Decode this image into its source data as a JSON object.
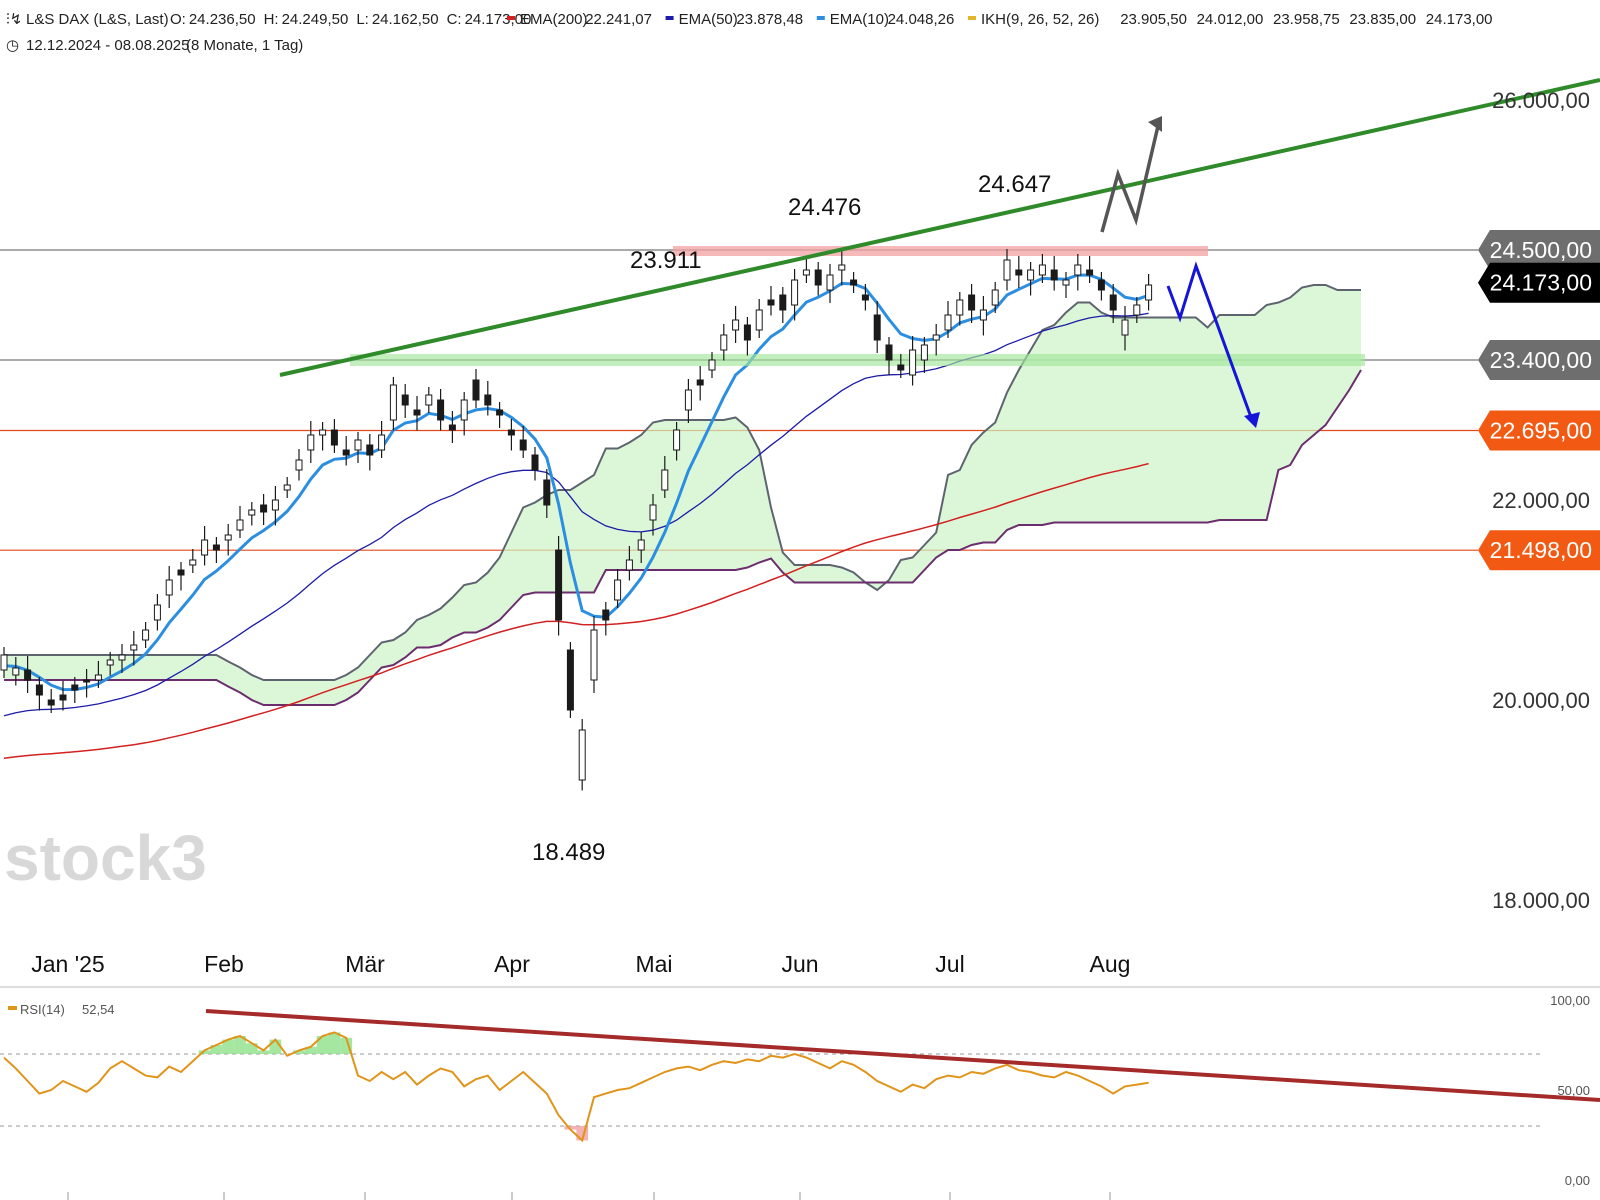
{
  "header": {
    "instrument": "L&S DAX (L&S, Last)",
    "ohlc": [
      {
        "label": "O:",
        "value": "24.236,50"
      },
      {
        "label": "H:",
        "value": "24.249,50"
      },
      {
        "label": "L:",
        "value": "24.162,50"
      },
      {
        "label": "C:",
        "value": "24.173,00"
      }
    ],
    "indicators": [
      {
        "name": "EMA(200)",
        "value": "22.241,07",
        "color": "#d32020"
      },
      {
        "name": "EMA(50)",
        "value": "23.878,48",
        "color": "#1c1ca8"
      },
      {
        "name": "EMA(10)",
        "value": "24.048,26",
        "color": "#2b8ee0"
      },
      {
        "name": "IKH(9, 26, 52, 26)",
        "color": "#e0b62a",
        "values": [
          {
            "value": "23.905,50",
            "color": "#e0b62a"
          },
          {
            "value": "24.012,00",
            "color": "#2b8ee0"
          },
          {
            "value": "23.958,75",
            "color": "#4a5566"
          },
          {
            "value": "23.835,00",
            "color": "#6b2d6e"
          },
          {
            "value": "24.173,00",
            "color": "#5a8a3a"
          }
        ]
      }
    ],
    "range": "12.12.2024 - 08.08.2025",
    "range_detail": "(8 Monate, 1 Tag)"
  },
  "watermark": "stock3",
  "chart_data": [
    {
      "type": "candlestick",
      "title": "L&S DAX (L&S, Last)",
      "ylim": [
        17500,
        26400
      ],
      "y_ticks": [
        {
          "value": 18000,
          "label": "18.000,00"
        },
        {
          "value": 20000,
          "label": "20.000,00"
        },
        {
          "value": 22000,
          "label": "22.000,00"
        },
        {
          "value": 26000,
          "label": "26.000,00"
        }
      ],
      "x_ticks": [
        "Jan '25",
        "Feb",
        "Mär",
        "Apr",
        "Mai",
        "Jun",
        "Jul",
        "Aug"
      ],
      "price_labels": [
        {
          "value": 24500,
          "label": "24.500,00",
          "bg": "#6e6e6e"
        },
        {
          "value": 24173,
          "label": "24.173,00",
          "bg": "#000000"
        },
        {
          "value": 23400,
          "label": "23.400,00",
          "bg": "#6e6e6e"
        },
        {
          "value": 22695,
          "label": "22.695,00",
          "bg": "#f25a14"
        },
        {
          "value": 21498,
          "label": "21.498,00",
          "bg": "#f25a14"
        }
      ],
      "horizontal_lines": [
        {
          "value": 24500,
          "color": "#777777"
        },
        {
          "value": 23400,
          "color": "#777777"
        },
        {
          "value": 22695,
          "color": "#e24a1a"
        },
        {
          "value": 21498,
          "color": "#e24a1a"
        }
      ],
      "annotations": [
        {
          "label": "24.647",
          "value": 24647
        },
        {
          "label": "24.476",
          "value": 24476
        },
        {
          "label": "23.911",
          "value": 23911
        },
        {
          "label": "18.489",
          "value": 18489
        }
      ],
      "series": [
        {
          "name": "DAX",
          "type": "candles",
          "close_points": [
            [
              20300,
              20450
            ],
            [
              20250,
              20320
            ],
            [
              20300,
              20200
            ],
            [
              20150,
              20050
            ],
            [
              20000,
              19950
            ],
            [
              20050,
              20000
            ],
            [
              20150,
              20100
            ],
            [
              20200,
              20180
            ],
            [
              20200,
              20250
            ],
            [
              20350,
              20400
            ],
            [
              20400,
              20450
            ],
            [
              20500,
              20550
            ],
            [
              20600,
              20700
            ],
            [
              20800,
              20950
            ],
            [
              21050,
              21200
            ],
            [
              21300,
              21250
            ],
            [
              21350,
              21400
            ],
            [
              21450,
              21600
            ],
            [
              21550,
              21500
            ],
            [
              21600,
              21650
            ],
            [
              21700,
              21800
            ],
            [
              21850,
              21900
            ],
            [
              21950,
              21880
            ],
            [
              21900,
              22000
            ],
            [
              22100,
              22150
            ],
            [
              22300,
              22400
            ],
            [
              22500,
              22650
            ],
            [
              22650,
              22700
            ],
            [
              22700,
              22550
            ],
            [
              22500,
              22450
            ],
            [
              22500,
              22600
            ],
            [
              22550,
              22450
            ],
            [
              22500,
              22650
            ],
            [
              22800,
              23150
            ],
            [
              23050,
              22950
            ],
            [
              22900,
              22850
            ],
            [
              22950,
              23050
            ],
            [
              23000,
              22800
            ],
            [
              22750,
              22700
            ],
            [
              22800,
              23000
            ],
            [
              23200,
              23000
            ],
            [
              23050,
              22950
            ],
            [
              22900,
              22850
            ],
            [
              22700,
              22650
            ],
            [
              22600,
              22500
            ],
            [
              22450,
              22300
            ],
            [
              22200,
              21950
            ],
            [
              21500,
              20800
            ],
            [
              20500,
              19900
            ],
            [
              19200,
              19700
            ],
            [
              20200,
              20700
            ],
            [
              20900,
              20800
            ],
            [
              21000,
              21200
            ],
            [
              21300,
              21400
            ],
            [
              21500,
              21600
            ],
            [
              21800,
              21950
            ],
            [
              22100,
              22300
            ],
            [
              22500,
              22700
            ],
            [
              22900,
              23100
            ],
            [
              23200,
              23150
            ],
            [
              23300,
              23400
            ],
            [
              23500,
              23650
            ],
            [
              23700,
              23800
            ],
            [
              23750,
              23600
            ],
            [
              23700,
              23900
            ],
            [
              24000,
              23950
            ],
            [
              24050,
              23900
            ],
            [
              23950,
              24200
            ],
            [
              24250,
              24300
            ],
            [
              24300,
              24150
            ],
            [
              24100,
              24250
            ],
            [
              24300,
              24350
            ],
            [
              24200,
              24150
            ],
            [
              24050,
              24000
            ],
            [
              23850,
              23600
            ],
            [
              23550,
              23400
            ],
            [
              23350,
              23300
            ],
            [
              23250,
              23500
            ],
            [
              23400,
              23550
            ],
            [
              23600,
              23650
            ],
            [
              23700,
              23850
            ],
            [
              23850,
              24000
            ],
            [
              24050,
              23900
            ],
            [
              23800,
              23900
            ],
            [
              23950,
              24100
            ],
            [
              24200,
              24400
            ],
            [
              24300,
              24250
            ],
            [
              24200,
              24300
            ],
            [
              24250,
              24350
            ],
            [
              24300,
              24200
            ],
            [
              24150,
              24200
            ],
            [
              24250,
              24350
            ],
            [
              24300,
              24250
            ],
            [
              24200,
              24100
            ],
            [
              24050,
              23900
            ],
            [
              23650,
              23800
            ],
            [
              23850,
              23950
            ],
            [
              24000,
              24150
            ]
          ]
        },
        {
          "name": "EMA(10)",
          "color": "#2b8ee0"
        },
        {
          "name": "EMA(50)",
          "color": "#1c1ca8"
        },
        {
          "name": "EMA(200)",
          "color": "#d32020"
        },
        {
          "name": "IKH(9, 26, 52, 26)",
          "color": "#e0b62a"
        }
      ]
    },
    {
      "type": "line",
      "title": "RSI(14)",
      "legend": {
        "name": "RSI(14)",
        "value": "52,54",
        "color": "#e0941a"
      },
      "ylim": [
        0,
        100
      ],
      "y_ticks": [
        {
          "value": 0,
          "label": "0,00"
        },
        {
          "value": 50,
          "label": "50,00"
        },
        {
          "value": 100,
          "label": "100,00"
        }
      ],
      "bands": [
        30,
        70
      ],
      "series": [
        {
          "name": "RSI(14)",
          "values": [
            68,
            62,
            55,
            48,
            50,
            55,
            52,
            49,
            54,
            62,
            66,
            62,
            58,
            57,
            63,
            60,
            66,
            72,
            75,
            78,
            80,
            76,
            72,
            78,
            69,
            72,
            74,
            80,
            82,
            79,
            58,
            55,
            60,
            56,
            60,
            53,
            58,
            62,
            60,
            52,
            56,
            58,
            50,
            55,
            60,
            54,
            48,
            36,
            28,
            22,
            46,
            48,
            50,
            51,
            54,
            57,
            60,
            62,
            63,
            61,
            64,
            66,
            65,
            67,
            66,
            69,
            68,
            70,
            68,
            65,
            62,
            66,
            64,
            60,
            55,
            52,
            49,
            53,
            51,
            56,
            58,
            57,
            60,
            59,
            62,
            64,
            61,
            60,
            58,
            57,
            60,
            58,
            55,
            52,
            48,
            52,
            53,
            54
          ]
        }
      ]
    }
  ]
}
